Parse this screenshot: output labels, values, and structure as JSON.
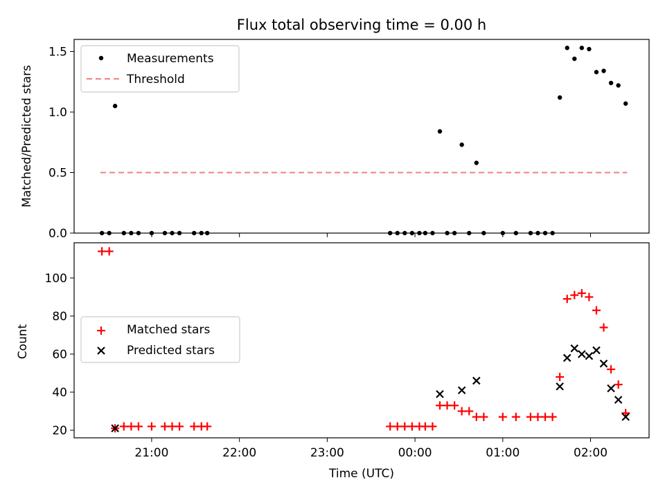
{
  "title": "Flux total observing time = 0.00 h",
  "colors": {
    "measurement": "#000000",
    "threshold": "#f08080",
    "matched": "#ff0000",
    "predicted": "#000000",
    "legend_border": "#cccccc"
  },
  "chart_data": [
    {
      "type": "scatter",
      "ylabel": "Matched/Predicted stars",
      "xlim": [
        "20:07",
        "02:40"
      ],
      "ylim": [
        0,
        1.6
      ],
      "yticks": [
        "0.0",
        "0.5",
        "1.0",
        "1.5"
      ],
      "grid": false,
      "legend_position": "top-left",
      "legend": [
        "Measurements",
        "Threshold"
      ],
      "threshold": {
        "y": 0.5,
        "x_start": "20:25",
        "x_end": "02:25"
      },
      "measurements": [
        [
          "20:26",
          0
        ],
        [
          "20:31",
          0
        ],
        [
          "20:35",
          1.05
        ],
        [
          "20:41",
          0
        ],
        [
          "20:46",
          0
        ],
        [
          "20:51",
          0
        ],
        [
          "21:00",
          0
        ],
        [
          "21:09",
          0
        ],
        [
          "21:14",
          0
        ],
        [
          "21:19",
          0
        ],
        [
          "21:29",
          0
        ],
        [
          "21:34",
          0
        ],
        [
          "21:38",
          0
        ],
        [
          "23:43",
          0
        ],
        [
          "23:48",
          0
        ],
        [
          "23:53",
          0
        ],
        [
          "23:58",
          0
        ],
        [
          "00:03",
          0
        ],
        [
          "00:07",
          0
        ],
        [
          "00:12",
          0
        ],
        [
          "00:17",
          0.84
        ],
        [
          "00:22",
          0
        ],
        [
          "00:27",
          0
        ],
        [
          "00:32",
          0.73
        ],
        [
          "00:37",
          0
        ],
        [
          "00:42",
          0.58
        ],
        [
          "00:47",
          0
        ],
        [
          "01:00",
          0
        ],
        [
          "01:09",
          0
        ],
        [
          "01:19",
          0
        ],
        [
          "01:24",
          0
        ],
        [
          "01:29",
          0
        ],
        [
          "01:34",
          0
        ],
        [
          "01:39",
          1.12
        ],
        [
          "01:44",
          1.53
        ],
        [
          "01:49",
          1.44
        ],
        [
          "01:54",
          1.53
        ],
        [
          "01:59",
          1.52
        ],
        [
          "02:04",
          1.33
        ],
        [
          "02:09",
          1.34
        ],
        [
          "02:14",
          1.24
        ],
        [
          "02:19",
          1.22
        ],
        [
          "02:24",
          1.07
        ]
      ]
    },
    {
      "type": "scatter",
      "ylabel": "Count",
      "xlabel": "Time (UTC)",
      "xlim": [
        "20:07",
        "02:40"
      ],
      "ylim": [
        16,
        118.5
      ],
      "yticks": [
        "20",
        "40",
        "60",
        "80",
        "100"
      ],
      "xticks": [
        "21:00",
        "22:00",
        "23:00",
        "00:00",
        "01:00",
        "02:00"
      ],
      "grid": false,
      "legend_position": "center-left",
      "legend": [
        "Matched stars",
        "Predicted stars"
      ],
      "matched": [
        [
          "20:26",
          114
        ],
        [
          "20:31",
          114
        ],
        [
          "20:35",
          21
        ],
        [
          "20:41",
          22
        ],
        [
          "20:46",
          22
        ],
        [
          "20:51",
          22
        ],
        [
          "21:00",
          22
        ],
        [
          "21:09",
          22
        ],
        [
          "21:14",
          22
        ],
        [
          "21:19",
          22
        ],
        [
          "21:29",
          22
        ],
        [
          "21:34",
          22
        ],
        [
          "21:38",
          22
        ],
        [
          "23:43",
          22
        ],
        [
          "23:48",
          22
        ],
        [
          "23:53",
          22
        ],
        [
          "23:58",
          22
        ],
        [
          "00:03",
          22
        ],
        [
          "00:07",
          22
        ],
        [
          "00:12",
          22
        ],
        [
          "00:17",
          33
        ],
        [
          "00:22",
          33
        ],
        [
          "00:27",
          33
        ],
        [
          "00:32",
          30
        ],
        [
          "00:37",
          30
        ],
        [
          "00:42",
          27
        ],
        [
          "00:47",
          27
        ],
        [
          "01:00",
          27
        ],
        [
          "01:09",
          27
        ],
        [
          "01:19",
          27
        ],
        [
          "01:24",
          27
        ],
        [
          "01:29",
          27
        ],
        [
          "01:34",
          27
        ],
        [
          "01:39",
          48
        ],
        [
          "01:44",
          89
        ],
        [
          "01:49",
          91
        ],
        [
          "01:54",
          92
        ],
        [
          "01:59",
          90
        ],
        [
          "02:04",
          83
        ],
        [
          "02:09",
          74
        ],
        [
          "02:14",
          52
        ],
        [
          "02:19",
          44
        ],
        [
          "02:24",
          29
        ]
      ],
      "predicted": [
        [
          "20:35",
          21
        ],
        [
          "00:17",
          39
        ],
        [
          "00:32",
          41
        ],
        [
          "00:42",
          46
        ],
        [
          "01:39",
          43
        ],
        [
          "01:44",
          58
        ],
        [
          "01:49",
          63
        ],
        [
          "01:54",
          60
        ],
        [
          "01:59",
          59
        ],
        [
          "02:04",
          62
        ],
        [
          "02:09",
          55
        ],
        [
          "02:14",
          42
        ],
        [
          "02:19",
          36
        ],
        [
          "02:24",
          27
        ]
      ]
    }
  ]
}
